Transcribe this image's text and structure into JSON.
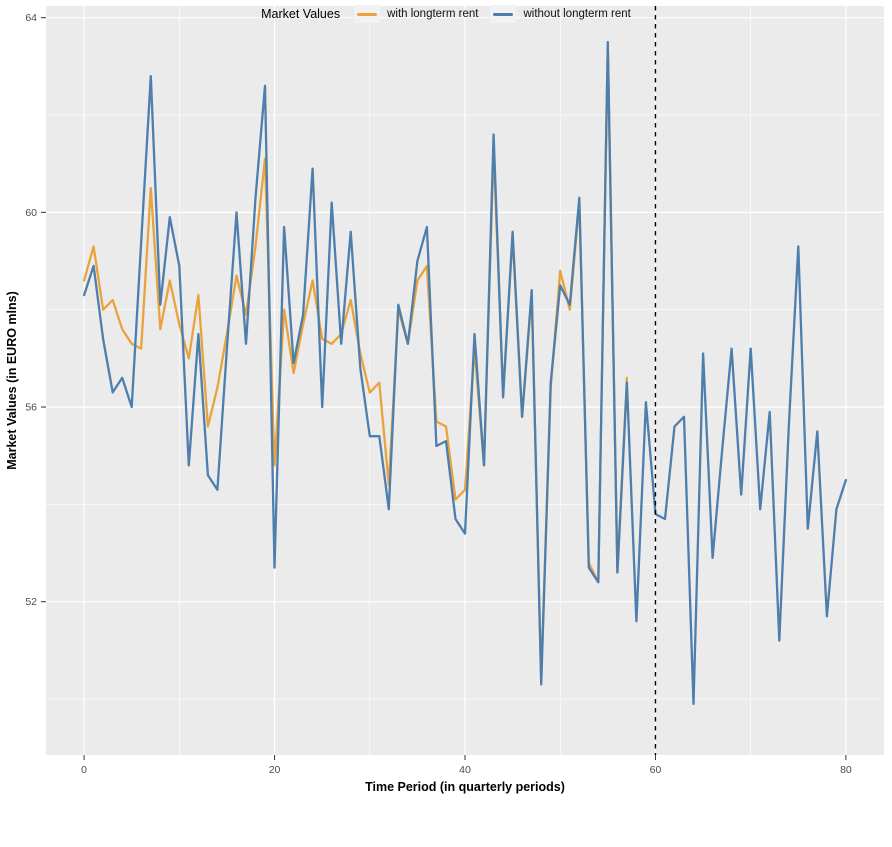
{
  "figure": {
    "background": "#ffffff",
    "panel_background": "#ebebeb",
    "grid_color": "#ffffff",
    "tick_label_color": "#4d4d4d",
    "reference_line_color": "#000000"
  },
  "chart_data": {
    "type": "line",
    "title": "",
    "xlabel": "Time Period (in quarterly periods)",
    "ylabel": "Market Values (in EURO mlns)",
    "x_ticks": [
      0,
      20,
      40,
      60,
      80
    ],
    "x_minor_ticks": [
      10,
      30,
      50,
      70
    ],
    "y_ticks": [
      52,
      56,
      60,
      64
    ],
    "y_minor_ticks": [
      50,
      54,
      58,
      62
    ],
    "xlim": [
      -4,
      84
    ],
    "ylim": [
      48.85,
      64.24
    ],
    "grid": true,
    "legend_position": "bottom",
    "legend_title": "Market Values",
    "vline": {
      "x": 60,
      "style": "dashed",
      "color": "#000000"
    },
    "series": [
      {
        "name": "with longterm rent",
        "color": "#e8a33c",
        "x_start": 0,
        "x_step": 1,
        "values": [
          58.6,
          59.3,
          58.0,
          58.2,
          57.6,
          57.3,
          57.2,
          60.5,
          57.6,
          58.6,
          57.7,
          57.0,
          58.3,
          55.6,
          56.4,
          57.5,
          58.7,
          57.9,
          59.3,
          61.1,
          54.8,
          58.0,
          56.7,
          57.7,
          58.6,
          57.4,
          57.3,
          57.5,
          58.2,
          57.1,
          56.3,
          56.5,
          54.4,
          58.0,
          57.3,
          58.6,
          58.9,
          55.7,
          55.6,
          54.1,
          54.3,
          57.2,
          54.8,
          61.3,
          56.3,
          59.5,
          55.8,
          58.3,
          50.4,
          56.4,
          58.8,
          58.0,
          60.2,
          52.8,
          52.4,
          63.4,
          52.6,
          56.6
        ]
      },
      {
        "name": "without longterm rent",
        "color": "#4d7eac",
        "x_start": 0,
        "x_step": 1,
        "values": [
          58.3,
          58.9,
          57.4,
          56.3,
          56.6,
          56.0,
          59.4,
          62.8,
          58.1,
          59.9,
          58.9,
          54.8,
          57.5,
          54.6,
          54.3,
          57.2,
          60.0,
          57.3,
          60.3,
          62.6,
          52.7,
          59.7,
          56.9,
          57.9,
          60.9,
          56.0,
          60.2,
          57.3,
          59.6,
          56.8,
          55.4,
          55.4,
          53.9,
          58.1,
          57.3,
          59.0,
          59.7,
          55.2,
          55.3,
          53.7,
          53.4,
          57.5,
          54.8,
          61.6,
          56.2,
          59.6,
          55.8,
          58.4,
          50.3,
          56.5,
          58.5,
          58.1,
          60.3,
          52.7,
          52.4,
          63.5,
          52.6,
          56.5,
          51.6,
          56.1,
          53.8,
          53.7,
          55.6,
          55.8,
          49.9,
          57.1,
          52.9,
          55.1,
          57.2,
          54.2,
          57.2,
          53.9,
          55.9,
          51.2,
          55.6,
          59.3,
          53.5,
          55.5,
          51.7,
          53.9,
          54.5
        ]
      }
    ]
  },
  "legend": {
    "title": "Market Values",
    "entries": [
      {
        "label": "with longterm rent",
        "color": "#e8a33c"
      },
      {
        "label": "without longterm rent",
        "color": "#4d7eac"
      }
    ]
  },
  "axes": {
    "x_title": "Time Period (in quarterly periods)",
    "y_title": "Market Values (in EURO mlns)"
  }
}
